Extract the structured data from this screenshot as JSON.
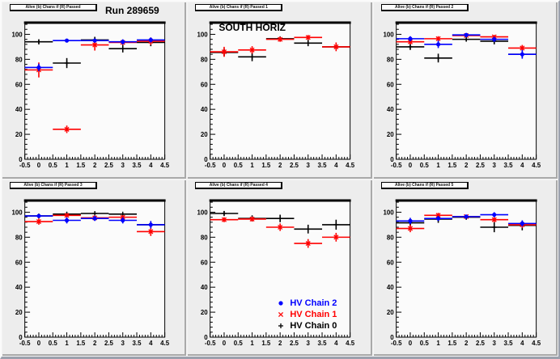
{
  "colors": {
    "hv_chain_2": "#0000ff",
    "hv_chain_1": "#ff0000",
    "hv_chain_0": "#000000",
    "frame_fill": "#fbfbfb",
    "pad_bg": "#ededed"
  },
  "axes": {
    "x_tick_labels": [
      "-0.5",
      "0",
      "0.5",
      "1",
      "1.5",
      "2",
      "2.5",
      "3",
      "3.5",
      "4",
      "4.5"
    ],
    "y_tick_labels": [
      "0",
      "20",
      "40",
      "60",
      "80",
      "100"
    ],
    "x_minor_step": 0.1,
    "y_minor_step": 4,
    "grid": false,
    "ticks": "inside, bottom and left"
  },
  "chart_data": [
    {
      "type": "scatter",
      "title": "Alive (b) Chans if (R) Passed",
      "heading": "Run 289659",
      "xlim": [
        -0.5,
        4.5
      ],
      "ylim": [
        0,
        110
      ],
      "x": [
        0,
        1,
        2,
        3,
        4
      ],
      "bin_half_width": 0.5,
      "series": [
        {
          "name": "HV Chain 0",
          "color": "#000000",
          "marker": "plus",
          "values": [
            94,
            77,
            95.5,
            88.5,
            93.5
          ],
          "errors": [
            2,
            4,
            2.5,
            3,
            3
          ]
        },
        {
          "name": "HV Chain 1",
          "color": "#ff0000",
          "marker": "star",
          "values": [
            71.5,
            24,
            91.5,
            93.5,
            94.5
          ],
          "errors": [
            6,
            3,
            4.5,
            2,
            3
          ]
        },
        {
          "name": "HV Chain 2",
          "color": "#0000ff",
          "marker": "dot",
          "values": [
            73.5,
            95,
            95,
            94,
            95.5
          ],
          "errors": [
            3,
            1.5,
            1.5,
            2,
            2
          ]
        }
      ]
    },
    {
      "type": "scatter",
      "title": "Alive (b) Chans if (R) Passed 1",
      "inner_label": "SOUTH HORIZ",
      "xlim": [
        -0.5,
        4.5
      ],
      "ylim": [
        0,
        110
      ],
      "x": [
        0,
        1,
        2,
        3,
        4
      ],
      "bin_half_width": 0.5,
      "series": [
        {
          "name": "HV Chain 0",
          "color": "#000000",
          "marker": "plus",
          "values": [
            85.5,
            82,
            96.5,
            93,
            90
          ],
          "errors": [
            3,
            3.5,
            1.5,
            2.5,
            2
          ]
        },
        {
          "name": "HV Chain 1",
          "color": "#ff0000",
          "marker": "star",
          "values": [
            86,
            87.5,
            96,
            97.5,
            90
          ],
          "errors": [
            4,
            3,
            2,
            2,
            3.5
          ]
        }
      ]
    },
    {
      "type": "scatter",
      "title": "Alive (b) Chans if (R) Passed 2",
      "xlim": [
        -0.5,
        4.5
      ],
      "ylim": [
        0,
        110
      ],
      "x": [
        0,
        1,
        2,
        3,
        4
      ],
      "bin_half_width": 0.5,
      "series": [
        {
          "name": "HV Chain 0",
          "color": "#000000",
          "marker": "plus",
          "values": [
            90,
            81,
            96,
            94.5,
            84
          ],
          "errors": [
            2.5,
            3.5,
            1.5,
            2.5,
            3
          ]
        },
        {
          "name": "HV Chain 1",
          "color": "#ff0000",
          "marker": "star",
          "values": [
            94,
            96.5,
            99,
            98,
            89
          ],
          "errors": [
            2,
            2,
            1,
            1.5,
            2.5
          ]
        },
        {
          "name": "HV Chain 2",
          "color": "#0000ff",
          "marker": "dot",
          "values": [
            96.5,
            92,
            99.5,
            96,
            84
          ],
          "errors": [
            2,
            3,
            1,
            2,
            3.5
          ]
        }
      ]
    },
    {
      "type": "scatter",
      "title": "Alive (b) Chans if (R) Passed 3",
      "xlim": [
        -0.5,
        4.5
      ],
      "ylim": [
        0,
        110
      ],
      "x": [
        0,
        1,
        2,
        3,
        4
      ],
      "bin_half_width": 0.5,
      "series": [
        {
          "name": "HV Chain 0",
          "color": "#000000",
          "marker": "plus",
          "values": [
            97,
            98.5,
            99,
            98.5,
            90
          ],
          "errors": [
            1.5,
            1.5,
            1,
            1,
            2
          ]
        },
        {
          "name": "HV Chain 1",
          "color": "#ff0000",
          "marker": "star",
          "values": [
            92.5,
            97.5,
            95.5,
            96,
            84.5
          ],
          "errors": [
            2.5,
            1.5,
            2,
            1.5,
            3.5
          ]
        },
        {
          "name": "HV Chain 2",
          "color": "#0000ff",
          "marker": "dot",
          "values": [
            97,
            93.5,
            95,
            93.5,
            90
          ],
          "errors": [
            1.5,
            2.5,
            2,
            2.5,
            3
          ]
        }
      ]
    },
    {
      "type": "scatter",
      "title": "Alive (b) Chans if (R) Passed 4",
      "xlim": [
        -0.5,
        4.5
      ],
      "ylim": [
        0,
        110
      ],
      "x": [
        0,
        1,
        2,
        3,
        4
      ],
      "bin_half_width": 0.5,
      "series": [
        {
          "name": "HV Chain 0",
          "color": "#000000",
          "marker": "plus",
          "values": [
            99,
            95,
            95,
            86.5,
            90
          ],
          "errors": [
            2,
            2.5,
            3,
            3.5,
            4
          ]
        },
        {
          "name": "HV Chain 1",
          "color": "#ff0000",
          "marker": "star",
          "values": [
            94,
            94.5,
            88,
            75,
            80
          ],
          "errors": [
            2,
            2,
            3,
            3.5,
            3.5
          ]
        }
      ],
      "legend": {
        "position": "bottom-right",
        "entries": [
          {
            "label": "HV Chain 2",
            "color": "#0000ff",
            "marker": "dot"
          },
          {
            "label": "HV Chain 1",
            "color": "#ff0000",
            "marker": "star"
          },
          {
            "label": "HV Chain 0",
            "color": "#000000",
            "marker": "plus"
          }
        ]
      }
    },
    {
      "type": "scatter",
      "title": "Alive (b) Chans if (R) Passed 5",
      "xlim": [
        -0.5,
        4.5
      ],
      "ylim": [
        0,
        110
      ],
      "x": [
        0,
        1,
        2,
        3,
        4
      ],
      "bin_half_width": 0.5,
      "series": [
        {
          "name": "HV Chain 0",
          "color": "#000000",
          "marker": "plus",
          "values": [
            91.5,
            94.5,
            96,
            88,
            89.5
          ],
          "errors": [
            3,
            3,
            2,
            4,
            4
          ]
        },
        {
          "name": "HV Chain 1",
          "color": "#ff0000",
          "marker": "star",
          "values": [
            87,
            97.5,
            96.5,
            94,
            90
          ],
          "errors": [
            3,
            2,
            1.5,
            2,
            2.5
          ]
        },
        {
          "name": "HV Chain 2",
          "color": "#0000ff",
          "marker": "dot",
          "values": [
            93,
            95,
            96.5,
            98,
            91
          ],
          "errors": [
            2.5,
            2,
            1.5,
            2,
            2.5
          ]
        }
      ]
    }
  ]
}
